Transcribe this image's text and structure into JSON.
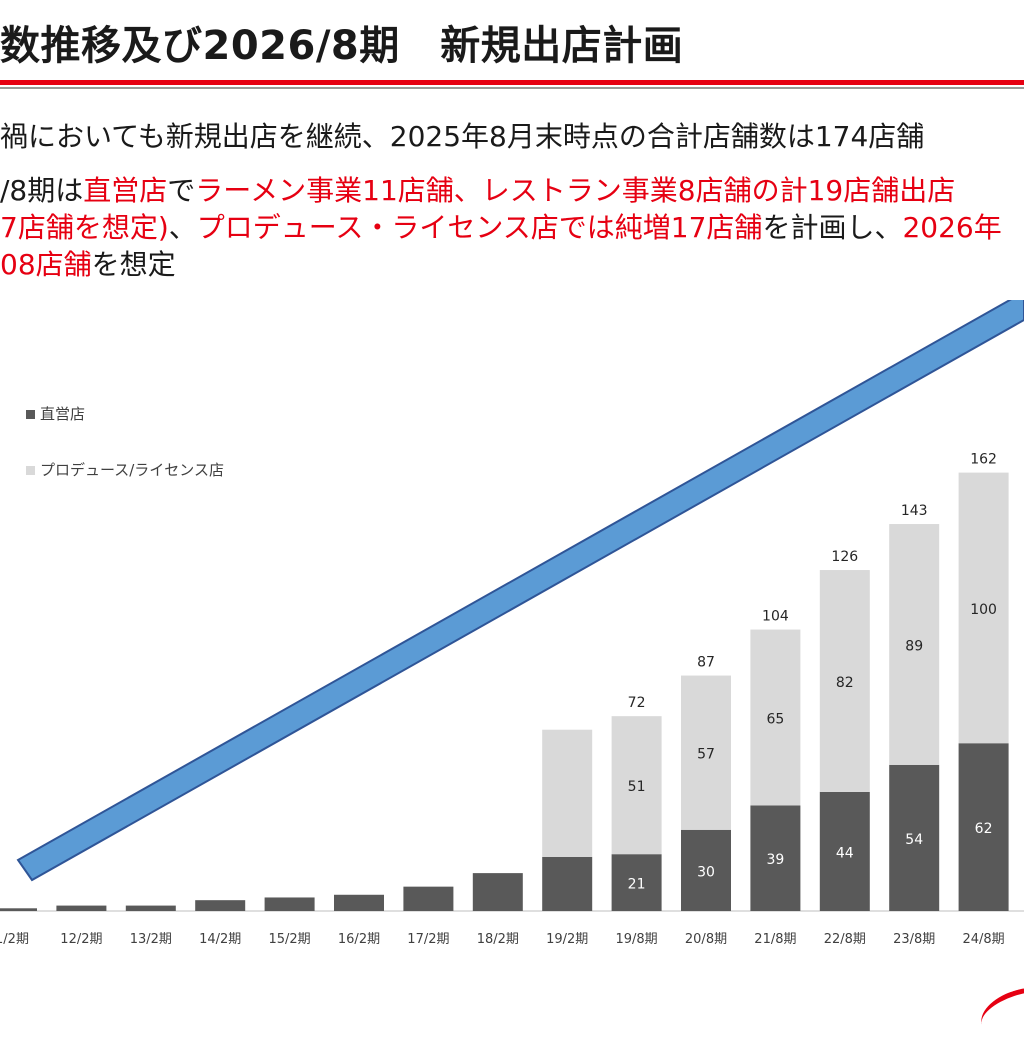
{
  "slide": {
    "title": "数推移及び2026/8期　新規出店計画",
    "line1": "禍においても新規出店を継続、2025年8月末時点の合計店舗数は174店舗",
    "line2": [
      {
        "text": "/8期は",
        "red": false
      },
      {
        "text": "直営店",
        "red": true
      },
      {
        "text": "で",
        "red": false
      },
      {
        "text": "ラーメン事業11店舗、レストラン事業8店舗の計19店舗出店",
        "red": true
      }
    ],
    "line3": [
      {
        "text": "7店舗を想定)",
        "red": true
      },
      {
        "text": "、",
        "red": false
      },
      {
        "text": "プロデュース・ライセンス店では純増17店舗",
        "red": true
      },
      {
        "text": "を計画し、",
        "red": false
      },
      {
        "text": "2026年",
        "red": true
      }
    ],
    "line4": [
      {
        "text": "08店舗",
        "red": true
      },
      {
        "text": "を想定",
        "red": false
      }
    ]
  },
  "chart_data": {
    "type": "bar",
    "stacked": true,
    "categories": [
      "1/2期",
      "12/2期",
      "13/2期",
      "14/2期",
      "15/2期",
      "16/2期",
      "17/2期",
      "18/2期",
      "19/2期",
      "19/8期",
      "20/8期",
      "21/8期",
      "22/8期",
      "23/8期",
      "24/8期"
    ],
    "series": [
      {
        "name": "直営店",
        "color": "#595959",
        "values": [
          1,
          2,
          2,
          4,
          5,
          6,
          9,
          14,
          20,
          21,
          30,
          39,
          44,
          54,
          62
        ],
        "labels": [
          null,
          null,
          null,
          null,
          null,
          null,
          null,
          null,
          null,
          "21",
          "30",
          "39",
          "44",
          "54",
          "62"
        ]
      },
      {
        "name": "プロデュース/ライセンス店",
        "color": "#d9d9d9",
        "values": [
          0,
          0,
          0,
          0,
          0,
          0,
          0,
          0,
          47,
          51,
          57,
          65,
          82,
          89,
          100
        ],
        "labels": [
          null,
          null,
          null,
          null,
          null,
          null,
          null,
          null,
          null,
          "51",
          "57",
          "65",
          "82",
          "89",
          "100"
        ]
      }
    ],
    "totals": [
      null,
      null,
      null,
      null,
      null,
      null,
      null,
      null,
      null,
      "72",
      "87",
      "104",
      "126",
      "143",
      "162"
    ],
    "legend_position": "top-left",
    "arrow_color": "#5b9bd5",
    "ylim": [
      0,
      175
    ]
  }
}
